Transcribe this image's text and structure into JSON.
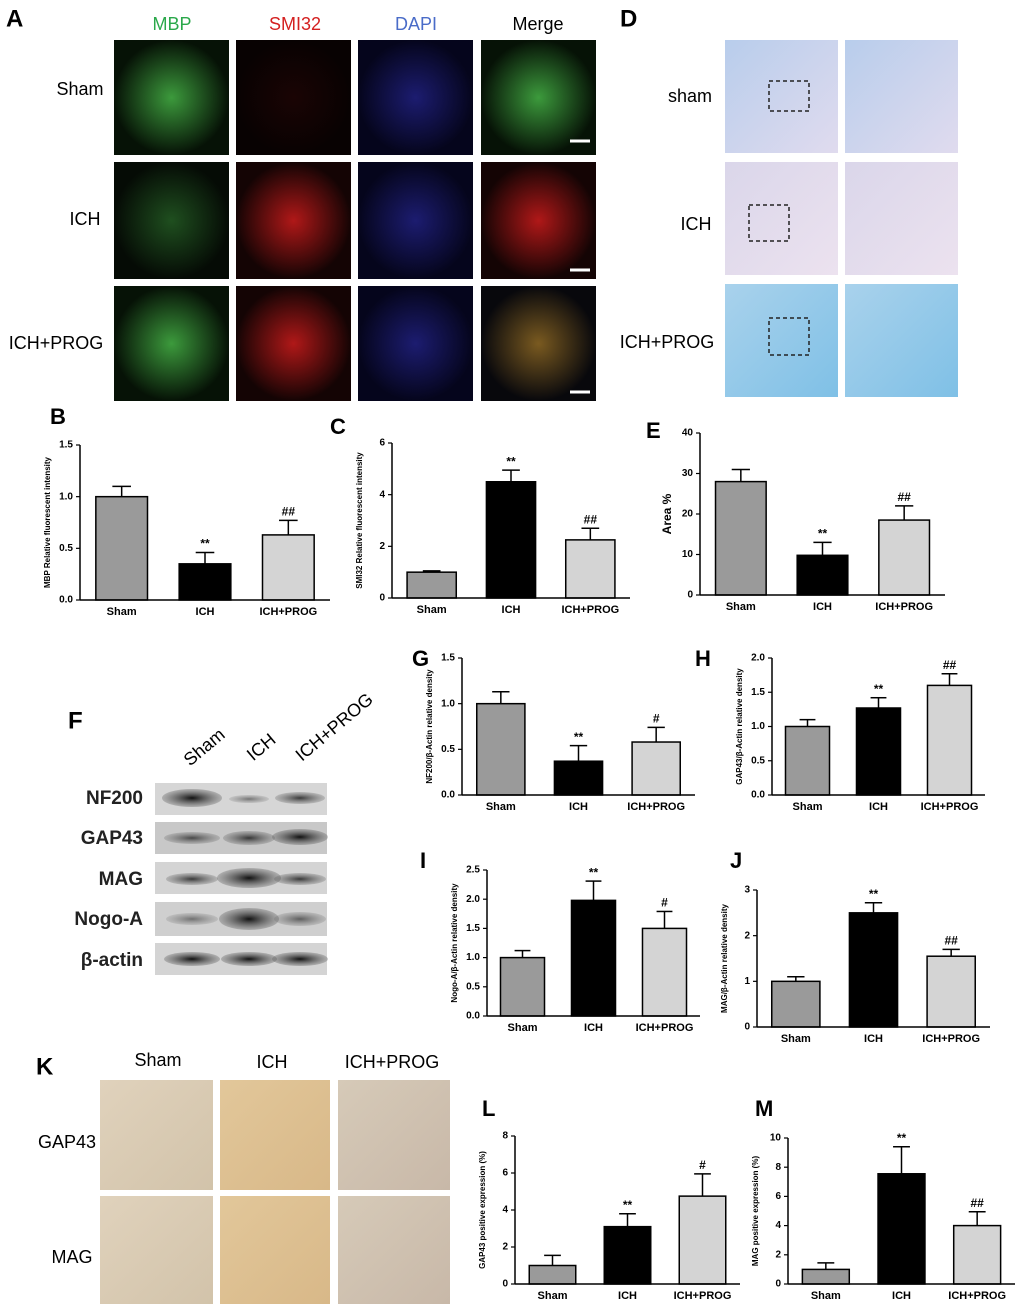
{
  "panel_a": {
    "label": "A",
    "columns": [
      "MBP",
      "SMI32",
      "DAPI",
      "Merge"
    ],
    "rows": [
      "Sham",
      "ICH",
      "ICH+PROG"
    ]
  },
  "panel_d": {
    "label": "D",
    "rows": [
      "sham",
      "ICH",
      "ICH+PROG"
    ]
  },
  "panel_f": {
    "label": "F",
    "columns": [
      "Sham",
      "ICH",
      "ICH+PROG"
    ],
    "rows": [
      "NF200",
      "GAP43",
      "MAG",
      "Nogo-A",
      "β-actin"
    ]
  },
  "panel_k": {
    "label": "K",
    "columns": [
      "Sham",
      "ICH",
      "ICH+PROG"
    ],
    "rows": [
      "GAP43",
      "MAG"
    ]
  },
  "chart_data": [
    {
      "type": "bar",
      "label": "B",
      "y_label": "MBP Relative fluorescent intensity",
      "categories": [
        "Sham",
        "ICH",
        "ICH+PROG"
      ],
      "values": [
        1.0,
        0.35,
        0.63
      ],
      "errors": [
        0.1,
        0.11,
        0.14
      ],
      "annotations": [
        null,
        "**",
        "##"
      ],
      "colors": [
        "#9a9a9a",
        "#000000",
        "#d4d4d4"
      ],
      "ylim": [
        0,
        1.5
      ],
      "yticks": [
        {
          "value": 0,
          "label": "0.0"
        },
        {
          "value": 0.5,
          "label": "0.5"
        },
        {
          "value": 1,
          "label": "1.0"
        },
        {
          "value": 1.5,
          "label": "1.5"
        }
      ]
    },
    {
      "type": "bar",
      "label": "C",
      "y_label": "SMI32 Relative fluorescent intensity",
      "categories": [
        "Sham",
        "ICH",
        "ICH+PROG"
      ],
      "values": [
        1.0,
        4.5,
        2.25
      ],
      "errors": [
        0.05,
        0.45,
        0.45
      ],
      "annotations": [
        null,
        "**",
        "##"
      ],
      "colors": [
        "#9a9a9a",
        "#000000",
        "#d4d4d4"
      ],
      "ylim": [
        0,
        6
      ],
      "yticks": [
        0,
        2,
        4,
        6
      ]
    },
    {
      "type": "bar",
      "label": "E",
      "y_label": "Area %",
      "categories": [
        "Sham",
        "ICH",
        "ICH+PROG"
      ],
      "values": [
        28,
        9.8,
        18.5
      ],
      "errors": [
        3,
        3.2,
        3.5
      ],
      "annotations": [
        null,
        "**",
        "##"
      ],
      "colors": [
        "#9a9a9a",
        "#000000",
        "#d4d4d4"
      ],
      "ylim": [
        0,
        40
      ],
      "yticks": [
        0,
        10,
        20,
        30,
        40
      ]
    },
    {
      "type": "bar",
      "label": "G",
      "y_label": "NF200/β-Actin relative density",
      "categories": [
        "Sham",
        "ICH",
        "ICH+PROG"
      ],
      "values": [
        1.0,
        0.37,
        0.58
      ],
      "errors": [
        0.13,
        0.17,
        0.16
      ],
      "annotations": [
        null,
        "**",
        "#"
      ],
      "colors": [
        "#9a9a9a",
        "#000000",
        "#d4d4d4"
      ],
      "ylim": [
        0,
        1.5
      ],
      "yticks": [
        {
          "value": 0,
          "label": "0.0"
        },
        {
          "value": 0.5,
          "label": "0.5"
        },
        {
          "value": 1,
          "label": "1.0"
        },
        {
          "value": 1.5,
          "label": "1.5"
        }
      ]
    },
    {
      "type": "bar",
      "label": "H",
      "y_label": "GAP43/β-Actin relative density",
      "categories": [
        "Sham",
        "ICH",
        "ICH+PROG"
      ],
      "values": [
        1.0,
        1.27,
        1.6
      ],
      "errors": [
        0.1,
        0.15,
        0.17
      ],
      "annotations": [
        null,
        "**",
        "##"
      ],
      "colors": [
        "#9a9a9a",
        "#000000",
        "#d4d4d4"
      ],
      "ylim": [
        0,
        2
      ],
      "yticks": [
        {
          "value": 0,
          "label": "0.0"
        },
        {
          "value": 0.5,
          "label": "0.5"
        },
        {
          "value": 1,
          "label": "1.0"
        },
        {
          "value": 1.5,
          "label": "1.5"
        },
        {
          "value": 2,
          "label": "2.0"
        }
      ]
    },
    {
      "type": "bar",
      "label": "I",
      "y_label": "Nogo-A/β-Actin relative density",
      "categories": [
        "Sham",
        "ICH",
        "ICH+PROG"
      ],
      "values": [
        1.0,
        1.98,
        1.5
      ],
      "errors": [
        0.12,
        0.33,
        0.29
      ],
      "annotations": [
        null,
        "**",
        "#"
      ],
      "colors": [
        "#9a9a9a",
        "#000000",
        "#d4d4d4"
      ],
      "ylim": [
        0,
        2.5
      ],
      "yticks": [
        {
          "value": 0,
          "label": "0.0"
        },
        {
          "value": 0.5,
          "label": "0.5"
        },
        {
          "value": 1,
          "label": "1.0"
        },
        {
          "value": 1.5,
          "label": "1.5"
        },
        {
          "value": 2,
          "label": "2.0"
        },
        {
          "value": 2.5,
          "label": "2.5"
        }
      ]
    },
    {
      "type": "bar",
      "label": "J",
      "y_label": "MAG/β-Actin relative density",
      "categories": [
        "Sham",
        "ICH",
        "ICH+PROG"
      ],
      "values": [
        1.0,
        2.5,
        1.55
      ],
      "errors": [
        0.1,
        0.22,
        0.15
      ],
      "annotations": [
        null,
        "**",
        "##"
      ],
      "colors": [
        "#9a9a9a",
        "#000000",
        "#d4d4d4"
      ],
      "ylim": [
        0,
        3
      ],
      "yticks": [
        0,
        1,
        2,
        3
      ]
    },
    {
      "type": "bar",
      "label": "L",
      "y_label": "GAP43 positive expression (%)",
      "categories": [
        "Sham",
        "ICH",
        "ICH+PROG"
      ],
      "values": [
        1.0,
        3.1,
        4.75
      ],
      "errors": [
        0.55,
        0.7,
        1.2
      ],
      "annotations": [
        null,
        "**",
        "#"
      ],
      "colors": [
        "#9a9a9a",
        "#000000",
        "#d4d4d4"
      ],
      "ylim": [
        0,
        8
      ],
      "yticks": [
        0,
        2,
        4,
        6,
        8
      ]
    },
    {
      "type": "bar",
      "label": "M",
      "y_label": "MAG positive expression (%)",
      "categories": [
        "Sham",
        "ICH",
        "ICH+PROG"
      ],
      "values": [
        1.0,
        7.55,
        4.0
      ],
      "errors": [
        0.45,
        1.85,
        0.95
      ],
      "annotations": [
        null,
        "**",
        "##"
      ],
      "colors": [
        "#9a9a9a",
        "#000000",
        "#d4d4d4"
      ],
      "ylim": [
        0,
        10
      ],
      "yticks": [
        0,
        2,
        4,
        6,
        8,
        10
      ]
    }
  ]
}
